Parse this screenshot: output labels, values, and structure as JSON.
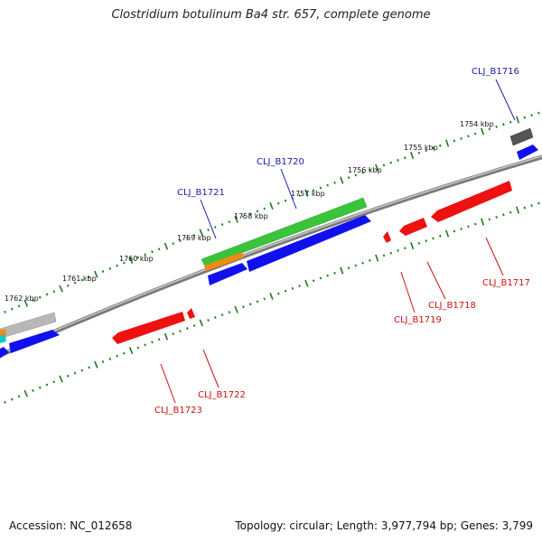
{
  "title": "Clostridium botulinum Ba4 str. 657, complete genome",
  "footer": {
    "accession": "Accession: NC_012658",
    "summary": "Topology: circular; Length: 3,977,794 bp; Genes: 3,799"
  },
  "colors": {
    "backbone": "#7a7a7a",
    "tick": "#1e7a1e",
    "forward_label": "#1a1aaa",
    "reverse_label": "#cc1111",
    "gene_blue": "#1010ee",
    "gene_red": "#ee1111",
    "gene_green": "#3ac43a",
    "gene_gray": "#b8b8b8",
    "gene_darkgray": "#555555",
    "gene_orange": "#f08a10",
    "gene_cyan": "#10c8c8"
  },
  "kbp_labels": [
    "1754 kbp",
    "1755 kbp",
    "1756 kbp",
    "1757 kbp",
    "1758 kbp",
    "1759 kbp",
    "1760 kbp",
    "1761 kbp",
    "1762 kbp"
  ],
  "forward_genes": [
    {
      "label": "CLJ_B1716"
    },
    {
      "label": "CLJ_B1720"
    },
    {
      "label": "CLJ_B1721"
    }
  ],
  "reverse_genes": [
    {
      "label": "CLJ_B1717"
    },
    {
      "label": "CLJ_B1718"
    },
    {
      "label": "CLJ_B1719"
    },
    {
      "label": "CLJ_B1722"
    },
    {
      "label": "CLJ_B1723"
    }
  ]
}
